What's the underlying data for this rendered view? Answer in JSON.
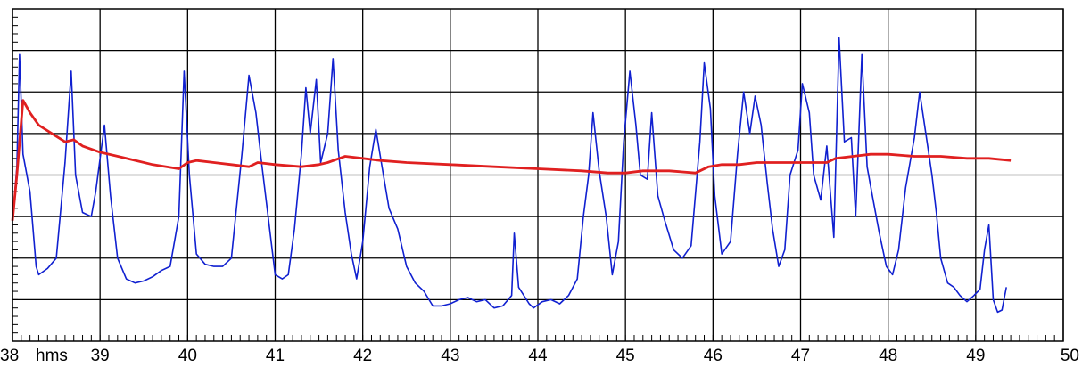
{
  "chart_data": {
    "type": "line",
    "title": "",
    "xlabel": "",
    "ylabel": "",
    "x_unit_label": "hms",
    "xlim": [
      38,
      50
    ],
    "ylim": [
      0,
      8
    ],
    "x_ticks": [
      "38",
      "39",
      "40",
      "41",
      "42",
      "43",
      "44",
      "45",
      "46",
      "47",
      "48",
      "49",
      "50"
    ],
    "grid": true,
    "colors": {
      "series_1": "#1020d0",
      "series_2": "#e02020",
      "grid": "#000000",
      "frame": "#000000"
    },
    "series": [
      {
        "points": [
          [
            38.0,
            2.9
          ],
          [
            38.05,
            4.2
          ],
          [
            38.08,
            6.9
          ],
          [
            38.12,
            4.5
          ],
          [
            38.2,
            3.6
          ],
          [
            38.27,
            1.8
          ],
          [
            38.3,
            1.6
          ],
          [
            38.4,
            1.75
          ],
          [
            38.5,
            2.0
          ],
          [
            38.6,
            4.3
          ],
          [
            38.67,
            6.5
          ],
          [
            38.72,
            4.0
          ],
          [
            38.8,
            3.1
          ],
          [
            38.9,
            3.0
          ],
          [
            38.95,
            3.6
          ],
          [
            39.05,
            5.2
          ],
          [
            39.12,
            3.5
          ],
          [
            39.2,
            2.0
          ],
          [
            39.3,
            1.5
          ],
          [
            39.4,
            1.4
          ],
          [
            39.5,
            1.45
          ],
          [
            39.6,
            1.55
          ],
          [
            39.7,
            1.7
          ],
          [
            39.8,
            1.8
          ],
          [
            39.9,
            3.0
          ],
          [
            39.96,
            6.5
          ],
          [
            40.02,
            4.0
          ],
          [
            40.1,
            2.1
          ],
          [
            40.2,
            1.85
          ],
          [
            40.3,
            1.8
          ],
          [
            40.4,
            1.8
          ],
          [
            40.5,
            2.0
          ],
          [
            40.62,
            4.5
          ],
          [
            40.7,
            6.4
          ],
          [
            40.78,
            5.5
          ],
          [
            40.85,
            4.2
          ],
          [
            40.92,
            3.0
          ],
          [
            41.0,
            1.6
          ],
          [
            41.08,
            1.5
          ],
          [
            41.15,
            1.6
          ],
          [
            41.22,
            2.7
          ],
          [
            41.3,
            4.5
          ],
          [
            41.35,
            6.1
          ],
          [
            41.4,
            5.0
          ],
          [
            41.47,
            6.3
          ],
          [
            41.52,
            4.3
          ],
          [
            41.6,
            5.0
          ],
          [
            41.66,
            6.8
          ],
          [
            41.72,
            4.6
          ],
          [
            41.8,
            3.1
          ],
          [
            41.87,
            2.1
          ],
          [
            41.93,
            1.5
          ],
          [
            42.0,
            2.4
          ],
          [
            42.08,
            4.2
          ],
          [
            42.15,
            5.1
          ],
          [
            42.22,
            4.2
          ],
          [
            42.3,
            3.2
          ],
          [
            42.4,
            2.7
          ],
          [
            42.5,
            1.8
          ],
          [
            42.6,
            1.4
          ],
          [
            42.7,
            1.2
          ],
          [
            42.8,
            0.85
          ],
          [
            42.9,
            0.85
          ],
          [
            43.0,
            0.9
          ],
          [
            43.1,
            1.0
          ],
          [
            43.2,
            1.05
          ],
          [
            43.3,
            0.95
          ],
          [
            43.4,
            1.0
          ],
          [
            43.5,
            0.8
          ],
          [
            43.6,
            0.85
          ],
          [
            43.7,
            1.1
          ],
          [
            43.73,
            2.6
          ],
          [
            43.78,
            1.3
          ],
          [
            43.9,
            0.9
          ],
          [
            43.95,
            0.8
          ],
          [
            44.05,
            0.95
          ],
          [
            44.15,
            1.0
          ],
          [
            44.25,
            0.9
          ],
          [
            44.35,
            1.1
          ],
          [
            44.45,
            1.5
          ],
          [
            44.52,
            3.0
          ],
          [
            44.58,
            4.0
          ],
          [
            44.63,
            5.5
          ],
          [
            44.7,
            4.1
          ],
          [
            44.78,
            3.0
          ],
          [
            44.85,
            1.6
          ],
          [
            44.92,
            2.4
          ],
          [
            44.98,
            4.8
          ],
          [
            45.05,
            6.5
          ],
          [
            45.12,
            5.2
          ],
          [
            45.17,
            4.0
          ],
          [
            45.25,
            3.9
          ],
          [
            45.3,
            5.5
          ],
          [
            45.37,
            3.5
          ],
          [
            45.45,
            2.9
          ],
          [
            45.55,
            2.2
          ],
          [
            45.65,
            2.0
          ],
          [
            45.75,
            2.3
          ],
          [
            45.85,
            4.8
          ],
          [
            45.9,
            6.7
          ],
          [
            45.97,
            5.6
          ],
          [
            46.02,
            3.5
          ],
          [
            46.1,
            2.1
          ],
          [
            46.2,
            2.4
          ],
          [
            46.28,
            4.5
          ],
          [
            46.35,
            6.0
          ],
          [
            46.42,
            5.0
          ],
          [
            46.48,
            5.9
          ],
          [
            46.55,
            5.2
          ],
          [
            46.62,
            3.8
          ],
          [
            46.68,
            2.7
          ],
          [
            46.75,
            1.8
          ],
          [
            46.82,
            2.2
          ],
          [
            46.88,
            4.0
          ],
          [
            46.97,
            4.6
          ],
          [
            47.02,
            6.2
          ],
          [
            47.1,
            5.5
          ],
          [
            47.15,
            4.0
          ],
          [
            47.23,
            3.4
          ],
          [
            47.3,
            4.7
          ],
          [
            47.38,
            2.5
          ],
          [
            47.44,
            7.3
          ],
          [
            47.5,
            4.8
          ],
          [
            47.58,
            4.9
          ],
          [
            47.63,
            3.0
          ],
          [
            47.7,
            6.9
          ],
          [
            47.76,
            4.2
          ],
          [
            47.82,
            3.5
          ],
          [
            47.9,
            2.6
          ],
          [
            47.98,
            1.8
          ],
          [
            48.05,
            1.6
          ],
          [
            48.12,
            2.2
          ],
          [
            48.2,
            3.7
          ],
          [
            48.3,
            4.9
          ],
          [
            48.36,
            6.0
          ],
          [
            48.43,
            5.0
          ],
          [
            48.5,
            4.0
          ],
          [
            48.55,
            3.1
          ],
          [
            48.6,
            2.0
          ],
          [
            48.68,
            1.4
          ],
          [
            48.75,
            1.3
          ],
          [
            48.82,
            1.1
          ],
          [
            48.9,
            0.95
          ],
          [
            48.98,
            1.1
          ],
          [
            49.05,
            1.25
          ],
          [
            49.1,
            2.2
          ],
          [
            49.15,
            2.8
          ],
          [
            49.2,
            1.0
          ],
          [
            49.25,
            0.7
          ],
          [
            49.3,
            0.75
          ],
          [
            49.35,
            1.3
          ]
        ]
      },
      {
        "points": [
          [
            38.0,
            2.9
          ],
          [
            38.05,
            4.0
          ],
          [
            38.12,
            5.8
          ],
          [
            38.2,
            5.5
          ],
          [
            38.3,
            5.2
          ],
          [
            38.45,
            5.0
          ],
          [
            38.6,
            4.8
          ],
          [
            38.7,
            4.85
          ],
          [
            38.8,
            4.7
          ],
          [
            39.0,
            4.55
          ],
          [
            39.3,
            4.4
          ],
          [
            39.6,
            4.25
          ],
          [
            39.9,
            4.15
          ],
          [
            40.0,
            4.3
          ],
          [
            40.1,
            4.35
          ],
          [
            40.3,
            4.3
          ],
          [
            40.5,
            4.25
          ],
          [
            40.7,
            4.2
          ],
          [
            40.8,
            4.3
          ],
          [
            41.0,
            4.25
          ],
          [
            41.3,
            4.2
          ],
          [
            41.5,
            4.25
          ],
          [
            41.6,
            4.3
          ],
          [
            41.8,
            4.45
          ],
          [
            42.0,
            4.4
          ],
          [
            42.2,
            4.35
          ],
          [
            42.5,
            4.3
          ],
          [
            43.0,
            4.25
          ],
          [
            43.5,
            4.2
          ],
          [
            44.0,
            4.15
          ],
          [
            44.5,
            4.1
          ],
          [
            44.8,
            4.05
          ],
          [
            45.0,
            4.05
          ],
          [
            45.2,
            4.1
          ],
          [
            45.5,
            4.1
          ],
          [
            45.8,
            4.05
          ],
          [
            45.95,
            4.2
          ],
          [
            46.1,
            4.25
          ],
          [
            46.3,
            4.25
          ],
          [
            46.5,
            4.3
          ],
          [
            46.8,
            4.3
          ],
          [
            47.0,
            4.3
          ],
          [
            47.3,
            4.3
          ],
          [
            47.4,
            4.4
          ],
          [
            47.6,
            4.45
          ],
          [
            47.8,
            4.5
          ],
          [
            48.0,
            4.5
          ],
          [
            48.3,
            4.45
          ],
          [
            48.6,
            4.45
          ],
          [
            48.9,
            4.4
          ],
          [
            49.15,
            4.4
          ],
          [
            49.4,
            4.35
          ]
        ]
      }
    ]
  }
}
